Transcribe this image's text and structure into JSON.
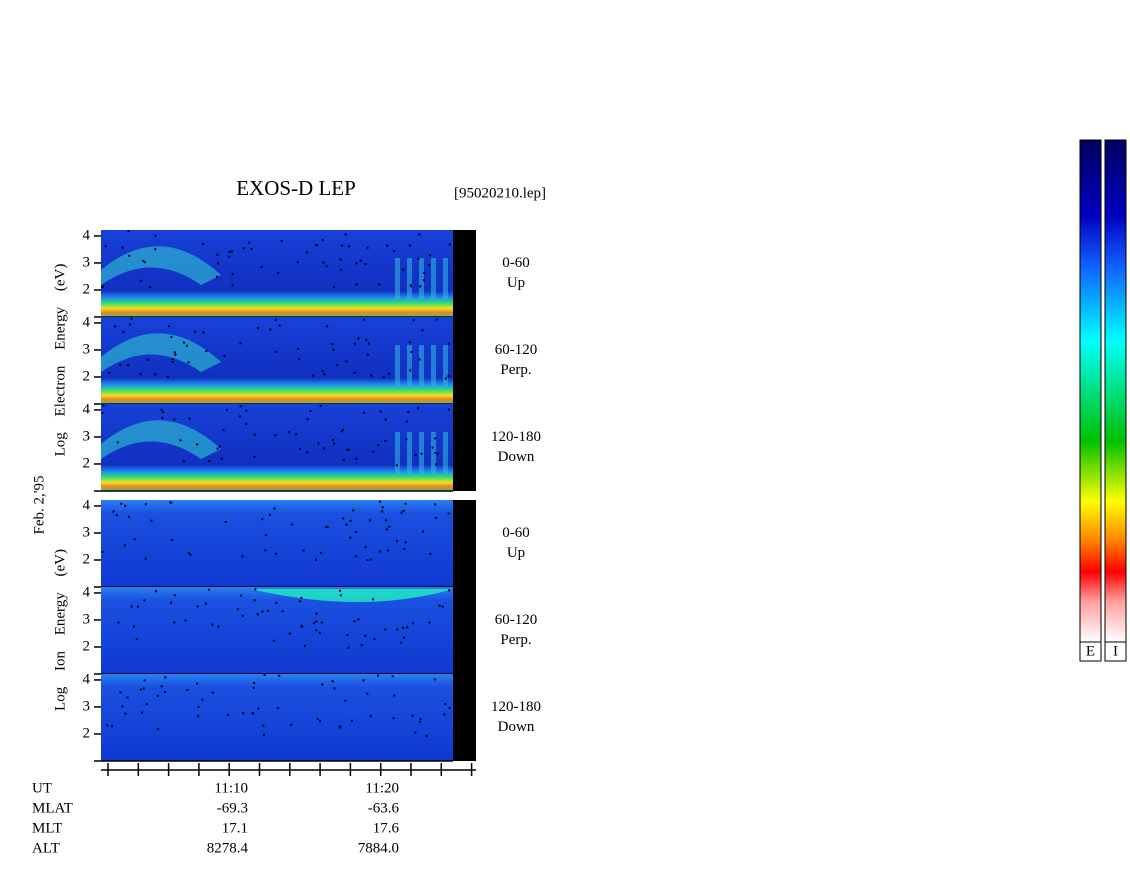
{
  "title": "EXOS-D LEP",
  "file": "[95020210.lep]",
  "date": "Feb. 2,'95",
  "electron": {
    "ylabel": "Log Electron Energy (eV)",
    "panels": [
      {
        "angle": "0-60",
        "direction": "Up"
      },
      {
        "angle": "60-120",
        "direction": "Perp."
      },
      {
        "angle": "120-180",
        "direction": "Down"
      }
    ]
  },
  "ion": {
    "ylabel": "Log Ion Energy (eV)",
    "panels": [
      {
        "angle": "0-60",
        "direction": "Up"
      },
      {
        "angle": "60-120",
        "direction": "Perp."
      },
      {
        "angle": "120-180",
        "direction": "Down"
      }
    ]
  },
  "ylim": [
    1,
    4.22
  ],
  "yticks": [
    2,
    3,
    4
  ],
  "time_axis": {
    "labels": [
      "11:10",
      "11:20"
    ],
    "rows": [
      {
        "name": "UT"
      },
      {
        "name": "MLAT",
        "values": [
          "-69.3",
          "-63.6"
        ]
      },
      {
        "name": "MLT",
        "values": [
          "17.1",
          "17.6"
        ]
      },
      {
        "name": "ALT",
        "values": [
          "8278.4",
          "7884.0"
        ]
      }
    ]
  },
  "colorbars": [
    "E",
    "I"
  ]
}
